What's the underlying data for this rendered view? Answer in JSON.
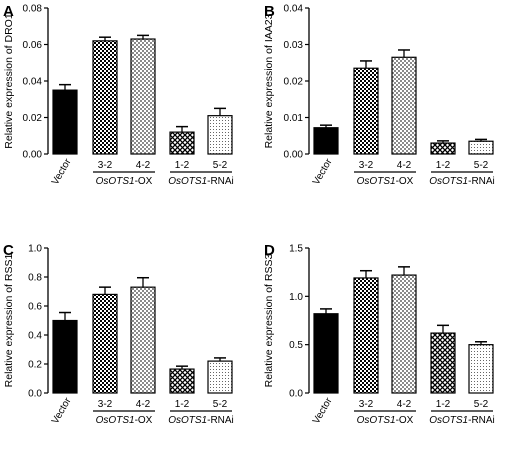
{
  "chart_data": [
    {
      "type": "bar",
      "panel": "A",
      "categories": [
        "Vector",
        "3-2",
        "4-2",
        "1-2",
        "5-2"
      ],
      "values": [
        0.035,
        0.062,
        0.063,
        0.012,
        0.021
      ],
      "errors": [
        0.003,
        0.002,
        0.002,
        0.003,
        0.004
      ],
      "ylabel": "Relative expression of DRO1",
      "ylim": [
        0,
        0.08
      ],
      "yticks": [
        "0.00",
        "0.02",
        "0.04",
        "0.06",
        "0.08"
      ],
      "groups": [
        {
          "italic": "OsOTS1",
          "suffix": "-OX",
          "members": [
            1,
            2
          ]
        },
        {
          "italic": "OsOTS1",
          "suffix": "-RNAi",
          "members": [
            3,
            4
          ]
        }
      ]
    },
    {
      "type": "bar",
      "panel": "B",
      "categories": [
        "Vector",
        "3-2",
        "4-2",
        "1-2",
        "5-2"
      ],
      "values": [
        0.0072,
        0.0235,
        0.0265,
        0.003,
        0.0035
      ],
      "errors": [
        0.0007,
        0.002,
        0.002,
        0.0006,
        0.0005
      ],
      "ylabel": "Relative expression of IAA23",
      "ylim": [
        0,
        0.04
      ],
      "yticks": [
        "0.00",
        "0.01",
        "0.02",
        "0.03",
        "0.04"
      ],
      "groups": [
        {
          "italic": "OsOTS1",
          "suffix": "-OX",
          "members": [
            1,
            2
          ]
        },
        {
          "italic": "OsOTS1",
          "suffix": "-RNAi",
          "members": [
            3,
            4
          ]
        }
      ]
    },
    {
      "type": "bar",
      "panel": "C",
      "categories": [
        "Vector",
        "3-2",
        "4-2",
        "1-2",
        "5-2"
      ],
      "values": [
        0.5,
        0.68,
        0.73,
        0.165,
        0.22
      ],
      "errors": [
        0.055,
        0.05,
        0.065,
        0.02,
        0.022
      ],
      "ylabel": "Relative expression of RSS1",
      "ylim": [
        0,
        1.0
      ],
      "yticks": [
        "0.0",
        "0.2",
        "0.4",
        "0.6",
        "0.8",
        "1.0"
      ],
      "groups": [
        {
          "italic": "OsOTS1",
          "suffix": "-OX",
          "members": [
            1,
            2
          ]
        },
        {
          "italic": "OsOTS1",
          "suffix": "-RNAi",
          "members": [
            3,
            4
          ]
        }
      ]
    },
    {
      "type": "bar",
      "panel": "D",
      "categories": [
        "Vector",
        "3-2",
        "4-2",
        "1-2",
        "5-2"
      ],
      "values": [
        0.82,
        1.19,
        1.22,
        0.62,
        0.5
      ],
      "errors": [
        0.05,
        0.075,
        0.085,
        0.08,
        0.03
      ],
      "ylabel": "Relative expression of RSS3",
      "ylim": [
        0,
        1.5
      ],
      "yticks": [
        "0.0",
        "0.5",
        "1.0",
        "1.5"
      ],
      "groups": [
        {
          "italic": "OsOTS1",
          "suffix": "-OX",
          "members": [
            1,
            2
          ]
        },
        {
          "italic": "OsOTS1",
          "suffix": "-RNAi",
          "members": [
            3,
            4
          ]
        }
      ]
    }
  ],
  "fills": [
    "solid-black",
    "checker-dense",
    "checker-light",
    "crosshatch",
    "dots"
  ],
  "colors": {
    "ink": "#000000",
    "background": "#ffffff",
    "light-fill": "#bdbdbd"
  }
}
